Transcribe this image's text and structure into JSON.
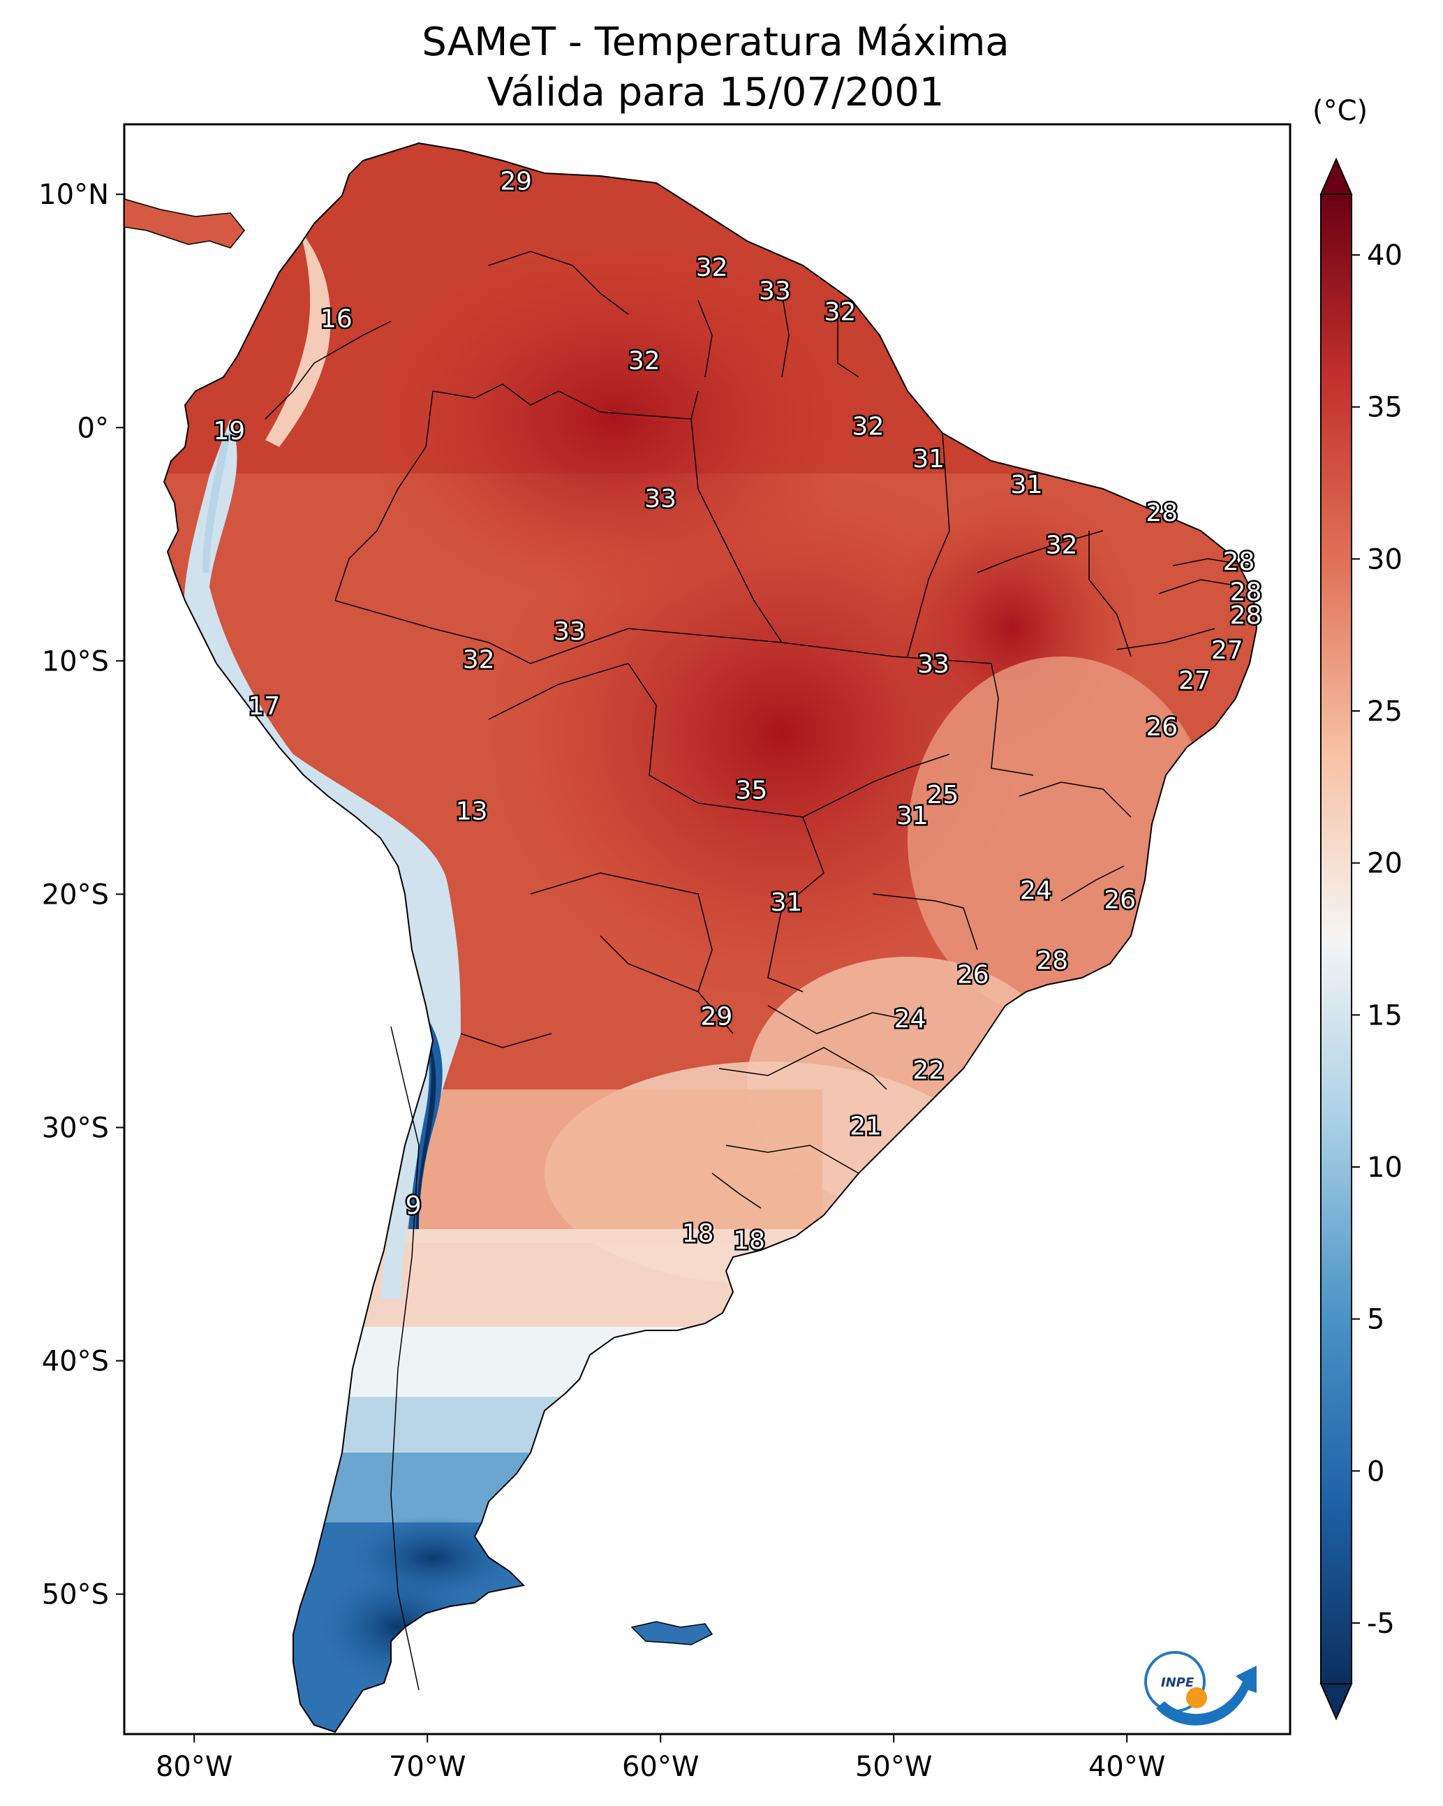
{
  "title": "SAMeT - Temperatura Máxima",
  "subtitle": "Válida para 15/07/2001",
  "colorbar": {
    "unit": "(°C)",
    "min": -7,
    "max": 42,
    "ticks": [
      -5,
      0,
      5,
      10,
      15,
      20,
      25,
      30,
      35,
      40
    ],
    "colors": [
      "#0b2f5e",
      "#1f63a8",
      "#4b95c6",
      "#a8cfe4",
      "#f5f5f5",
      "#f7c1a3",
      "#e0735a",
      "#c3312d",
      "#6b0014"
    ]
  },
  "map": {
    "lon_range": [
      -83,
      -33
    ],
    "lat_range": [
      -56,
      13
    ],
    "lon_ticks": [
      {
        "value": -80,
        "label": "80°W"
      },
      {
        "value": -70,
        "label": "70°W"
      },
      {
        "value": -60,
        "label": "60°W"
      },
      {
        "value": -50,
        "label": "50°W"
      },
      {
        "value": -40,
        "label": "40°W"
      }
    ],
    "lat_ticks": [
      {
        "value": 10,
        "label": "10°N"
      },
      {
        "value": 0,
        "label": "0°"
      },
      {
        "value": -10,
        "label": "10°S"
      },
      {
        "value": -20,
        "label": "20°S"
      },
      {
        "value": -30,
        "label": "30°S"
      },
      {
        "value": -40,
        "label": "40°S"
      },
      {
        "value": -50,
        "label": "50°S"
      }
    ],
    "city_values": [
      {
        "lon": -66.2,
        "lat": 10.5,
        "value": "29"
      },
      {
        "lon": -73.9,
        "lat": 4.6,
        "value": "16"
      },
      {
        "lon": -57.8,
        "lat": 6.8,
        "value": "32"
      },
      {
        "lon": -55.1,
        "lat": 5.8,
        "value": "33"
      },
      {
        "lon": -52.3,
        "lat": 4.9,
        "value": "32"
      },
      {
        "lon": -60.7,
        "lat": 2.8,
        "value": "32"
      },
      {
        "lon": -78.5,
        "lat": -0.2,
        "value": "19"
      },
      {
        "lon": -51.1,
        "lat": 0.0,
        "value": "32"
      },
      {
        "lon": -48.5,
        "lat": -1.4,
        "value": "31"
      },
      {
        "lon": -44.3,
        "lat": -2.5,
        "value": "31"
      },
      {
        "lon": -60.0,
        "lat": -3.1,
        "value": "33"
      },
      {
        "lon": -38.5,
        "lat": -3.7,
        "value": "28"
      },
      {
        "lon": -42.8,
        "lat": -5.1,
        "value": "32"
      },
      {
        "lon": -35.2,
        "lat": -5.8,
        "value": "28"
      },
      {
        "lon": -34.9,
        "lat": -7.1,
        "value": "28"
      },
      {
        "lon": -34.9,
        "lat": -8.1,
        "value": "28"
      },
      {
        "lon": -63.9,
        "lat": -8.8,
        "value": "33"
      },
      {
        "lon": -67.8,
        "lat": -10.0,
        "value": "32"
      },
      {
        "lon": -48.3,
        "lat": -10.2,
        "value": "33"
      },
      {
        "lon": -35.7,
        "lat": -9.6,
        "value": "27"
      },
      {
        "lon": -37.1,
        "lat": -10.9,
        "value": "27"
      },
      {
        "lon": -77.0,
        "lat": -12.0,
        "value": "17"
      },
      {
        "lon": -38.5,
        "lat": -12.9,
        "value": "26"
      },
      {
        "lon": -56.1,
        "lat": -15.6,
        "value": "35"
      },
      {
        "lon": -47.9,
        "lat": -15.8,
        "value": "25"
      },
      {
        "lon": -49.2,
        "lat": -16.7,
        "value": "31"
      },
      {
        "lon": -68.1,
        "lat": -16.5,
        "value": "13"
      },
      {
        "lon": -43.9,
        "lat": -19.9,
        "value": "24"
      },
      {
        "lon": -40.3,
        "lat": -20.3,
        "value": "26"
      },
      {
        "lon": -54.6,
        "lat": -20.4,
        "value": "31"
      },
      {
        "lon": -43.2,
        "lat": -22.9,
        "value": "28"
      },
      {
        "lon": -46.6,
        "lat": -23.5,
        "value": "26"
      },
      {
        "lon": -57.6,
        "lat": -25.3,
        "value": "29"
      },
      {
        "lon": -49.3,
        "lat": -25.4,
        "value": "24"
      },
      {
        "lon": -48.5,
        "lat": -27.6,
        "value": "22"
      },
      {
        "lon": -51.2,
        "lat": -30.0,
        "value": "21"
      },
      {
        "lon": -70.6,
        "lat": -33.4,
        "value": "9"
      },
      {
        "lon": -58.4,
        "lat": -34.6,
        "value": "18"
      },
      {
        "lon": -56.2,
        "lat": -34.9,
        "value": "18"
      }
    ]
  }
}
